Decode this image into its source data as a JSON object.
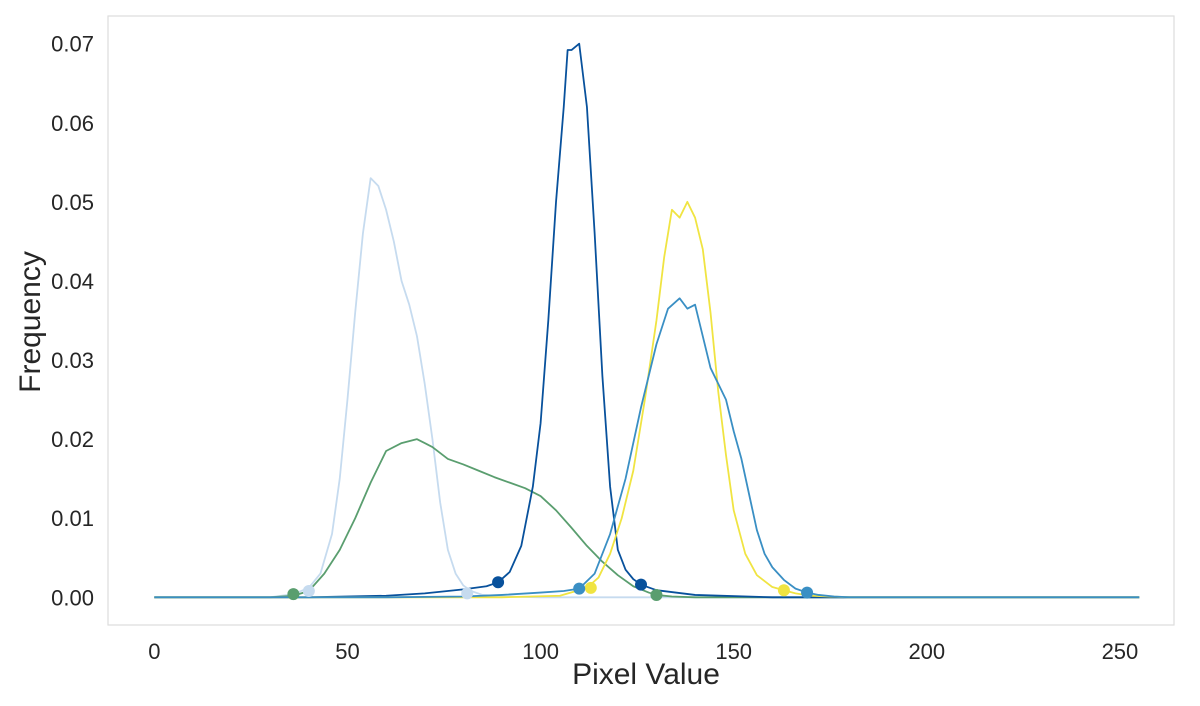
{
  "chart_data": {
    "type": "line",
    "title": "",
    "xlabel": "Pixel Value",
    "ylabel": "Frequency",
    "xlim": [
      -12,
      264
    ],
    "ylim": [
      -0.0035,
      0.0735
    ],
    "xticks": [
      0,
      50,
      100,
      150,
      200,
      250
    ],
    "xtick_labels": [
      "0",
      "50",
      "100",
      "150",
      "200",
      "250"
    ],
    "yticks": [
      0.0,
      0.01,
      0.02,
      0.03,
      0.04,
      0.05,
      0.06,
      0.07
    ],
    "ytick_labels": [
      "0.00",
      "0.01",
      "0.02",
      "0.03",
      "0.04",
      "0.05",
      "0.06",
      "0.07"
    ],
    "grid": false,
    "legend": "none",
    "frame_color": "#dddddd",
    "series": [
      {
        "color": "#c6dbef",
        "x": [
          0,
          30,
          36,
          40,
          43,
          46,
          48,
          50,
          52,
          54,
          56,
          58,
          60,
          62,
          64,
          66,
          68,
          70,
          72,
          74,
          76,
          78,
          80,
          82,
          85,
          90,
          100,
          255
        ],
        "y": [
          0,
          0,
          0.0004,
          0.0012,
          0.003,
          0.008,
          0.015,
          0.025,
          0.036,
          0.046,
          0.053,
          0.052,
          0.049,
          0.045,
          0.04,
          0.037,
          0.033,
          0.027,
          0.02,
          0.012,
          0.006,
          0.003,
          0.0015,
          0.0008,
          0.0003,
          0.0001,
          0,
          0
        ],
        "markers": [
          {
            "x": 40,
            "y": 0.0008
          },
          {
            "x": 81,
            "y": 0.0005
          }
        ]
      },
      {
        "color": "#5a9e6f",
        "x": [
          0,
          30,
          36,
          40,
          44,
          48,
          52,
          56,
          60,
          64,
          68,
          70,
          72,
          76,
          80,
          84,
          88,
          92,
          96,
          100,
          104,
          108,
          112,
          116,
          120,
          124,
          128,
          130,
          134,
          140,
          150,
          255
        ],
        "y": [
          0,
          0,
          0.0002,
          0.0008,
          0.003,
          0.006,
          0.01,
          0.0145,
          0.0185,
          0.0195,
          0.02,
          0.0195,
          0.019,
          0.0175,
          0.0168,
          0.016,
          0.0152,
          0.0145,
          0.0138,
          0.0128,
          0.011,
          0.0088,
          0.0065,
          0.0045,
          0.0028,
          0.0014,
          0.0006,
          0.0003,
          0.0001,
          0,
          0,
          0
        ],
        "markers": [
          {
            "x": 36,
            "y": 0.0004
          },
          {
            "x": 130,
            "y": 0.0003
          }
        ]
      },
      {
        "color": "#08519c",
        "x": [
          0,
          40,
          60,
          70,
          80,
          86,
          89,
          92,
          95,
          98,
          100,
          102,
          104,
          106,
          107,
          108,
          110,
          112,
          114,
          116,
          118,
          120,
          122,
          124,
          126,
          130,
          140,
          160,
          255
        ],
        "y": [
          0,
          0,
          0.0002,
          0.0005,
          0.001,
          0.0014,
          0.0019,
          0.0032,
          0.0065,
          0.014,
          0.022,
          0.035,
          0.05,
          0.062,
          0.0692,
          0.0692,
          0.07,
          0.062,
          0.046,
          0.028,
          0.014,
          0.006,
          0.0035,
          0.0023,
          0.0016,
          0.0009,
          0.0003,
          0,
          0
        ],
        "markers": [
          {
            "x": 89,
            "y": 0.0019
          },
          {
            "x": 126,
            "y": 0.0016
          }
        ]
      },
      {
        "color": "#f0e442",
        "x": [
          0,
          90,
          105,
          112,
          115,
          118,
          121,
          124,
          127,
          130,
          132,
          134,
          136,
          138,
          140,
          142,
          144,
          146,
          148,
          150,
          153,
          156,
          160,
          163,
          166,
          170,
          180,
          255
        ],
        "y": [
          0,
          0,
          0.0002,
          0.0012,
          0.0025,
          0.0055,
          0.01,
          0.016,
          0.025,
          0.035,
          0.043,
          0.049,
          0.048,
          0.05,
          0.048,
          0.044,
          0.036,
          0.026,
          0.018,
          0.011,
          0.0055,
          0.0028,
          0.0013,
          0.0009,
          0.0005,
          0.0002,
          0,
          0
        ],
        "markers": [
          {
            "x": 113,
            "y": 0.0012
          },
          {
            "x": 163,
            "y": 0.0009
          }
        ]
      },
      {
        "color": "#3a8fc4",
        "x": [
          0,
          60,
          80,
          90,
          100,
          106,
          110,
          114,
          118,
          122,
          126,
          130,
          133,
          136,
          138,
          140,
          142,
          144,
          146,
          148,
          150,
          152,
          154,
          156,
          158,
          160,
          163,
          166,
          169,
          172,
          176,
          180,
          190,
          255
        ],
        "y": [
          0,
          0,
          0.0001,
          0.0003,
          0.0006,
          0.0008,
          0.0011,
          0.003,
          0.008,
          0.015,
          0.024,
          0.032,
          0.0365,
          0.0378,
          0.0365,
          0.037,
          0.033,
          0.029,
          0.027,
          0.025,
          0.021,
          0.0175,
          0.013,
          0.0085,
          0.0055,
          0.0038,
          0.0022,
          0.0011,
          0.0006,
          0.0003,
          0.0001,
          0,
          0,
          0
        ],
        "markers": [
          {
            "x": 110,
            "y": 0.0011
          },
          {
            "x": 169,
            "y": 0.0006
          }
        ]
      }
    ]
  }
}
